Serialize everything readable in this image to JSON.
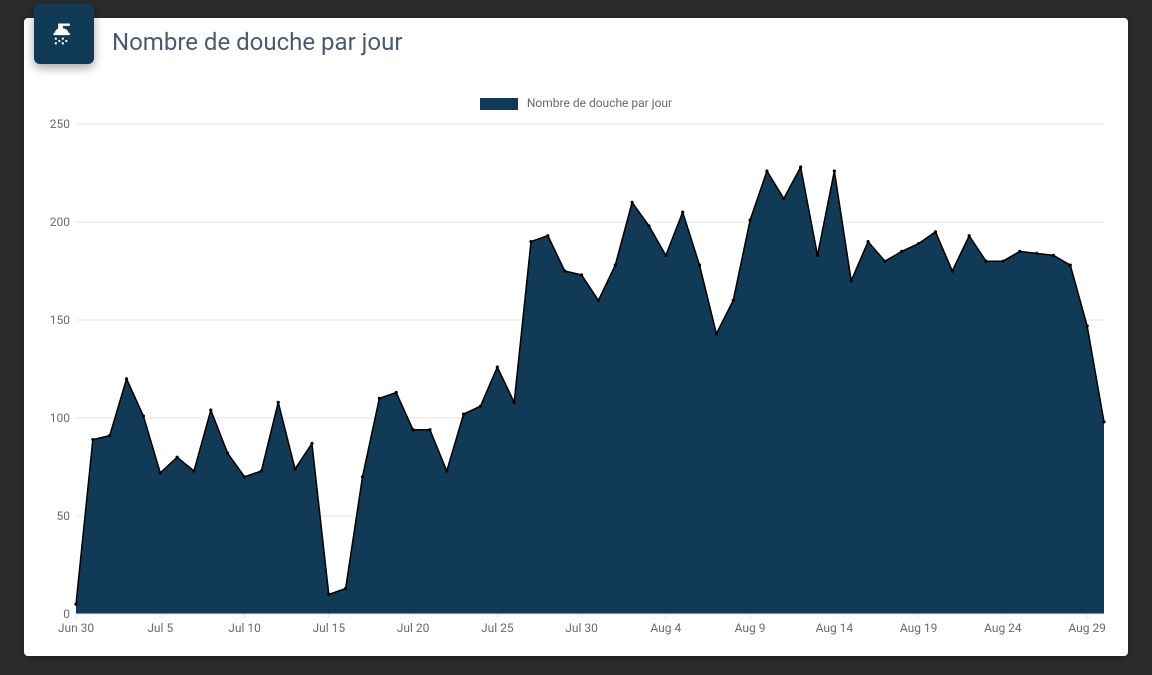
{
  "card": {
    "title": "Nombre de douche par jour",
    "icon_badge_color": "#103a56",
    "icon_color": "#ffffff",
    "icon_name": "shower"
  },
  "chart": {
    "type": "area",
    "legend_label": "Nombre de douche par jour",
    "fill_color": "#103a56",
    "line_color": "#000000",
    "point_color": "#000000",
    "background_color": "#ffffff",
    "grid_color": "#e6e6e6",
    "axis_text_color": "#6a6a6a",
    "title_fontsize": 24,
    "label_fontsize": 12,
    "ylim": [
      0,
      250
    ],
    "ytick_step": 50,
    "x_tick_labels": [
      "Jun 30",
      "Jul 5",
      "Jul 10",
      "Jul 15",
      "Jul 20",
      "Jul 25",
      "Jul 30",
      "Aug 4",
      "Aug 9",
      "Aug 14",
      "Aug 19",
      "Aug 24",
      "Aug 29"
    ],
    "x_tick_indices": [
      0,
      5,
      10,
      15,
      20,
      25,
      30,
      35,
      40,
      45,
      50,
      55,
      60
    ],
    "data": [
      5,
      89,
      91,
      120,
      101,
      72,
      80,
      73,
      104,
      82,
      70,
      73,
      108,
      74,
      87,
      10,
      13,
      70,
      110,
      113,
      94,
      94,
      73,
      102,
      106,
      126,
      108,
      190,
      193,
      175,
      173,
      160,
      178,
      210,
      198,
      183,
      205,
      178,
      143,
      160,
      201,
      226,
      212,
      228,
      183,
      226,
      170,
      190,
      180,
      185,
      189,
      195,
      175,
      193,
      180,
      180,
      185,
      184,
      183,
      178,
      147,
      98
    ]
  }
}
